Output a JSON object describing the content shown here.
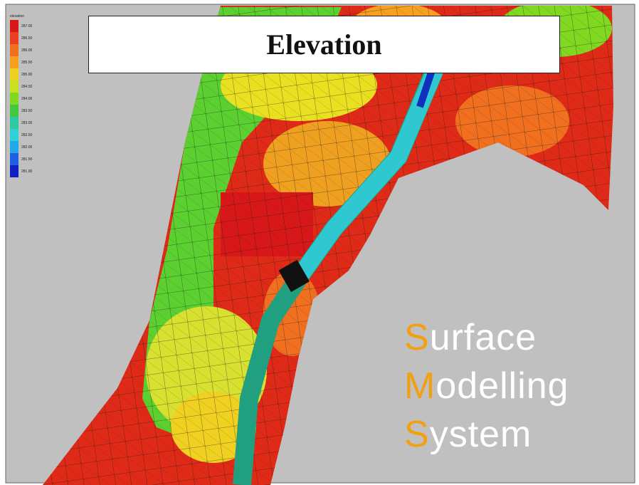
{
  "title": "Elevation",
  "legend": {
    "title": "elevation",
    "items": [
      {
        "label": "287.00",
        "color": "#d81818"
      },
      {
        "label": "286.50",
        "color": "#e84020"
      },
      {
        "label": "286.00",
        "color": "#f07020"
      },
      {
        "label": "285.50",
        "color": "#f8a020"
      },
      {
        "label": "285.00",
        "color": "#f0d020"
      },
      {
        "label": "284.50",
        "color": "#c8e020"
      },
      {
        "label": "284.00",
        "color": "#80d820"
      },
      {
        "label": "283.50",
        "color": "#40c840"
      },
      {
        "label": "283.00",
        "color": "#30c8a0"
      },
      {
        "label": "282.50",
        "color": "#30d0d8"
      },
      {
        "label": "282.00",
        "color": "#20a8e8"
      },
      {
        "label": "281.50",
        "color": "#2060e0"
      },
      {
        "label": "281.00",
        "color": "#1020c0"
      }
    ]
  },
  "watermark": {
    "lines": [
      "Surface",
      "Modelling",
      "System"
    ]
  }
}
